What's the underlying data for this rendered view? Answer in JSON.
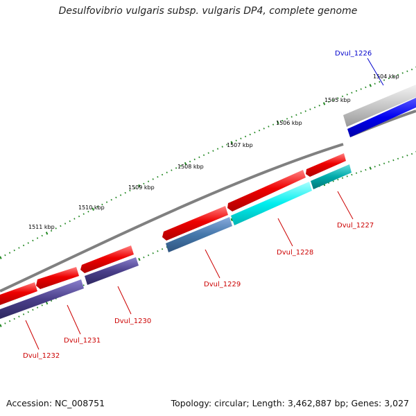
{
  "title": "Desulfovibrio vulgaris subsp. vulgaris DP4, complete genome",
  "footer": {
    "accession": "Accession: NC_008751",
    "topology": "Topology: circular; Length: 3,462,887 bp; Genes: 3,027"
  },
  "ticks": [
    "1504 kbp",
    "1505 kbp",
    "1506 kbp",
    "1507 kbp",
    "1508 kbp",
    "1509 kbp",
    "1510 kbp",
    "1511 kbp"
  ],
  "gene_labels": [
    {
      "name": "Dvul_1226",
      "color": "#0000cc"
    },
    {
      "name": "Dvul_1227",
      "color": "#cc0000"
    },
    {
      "name": "Dvul_1228",
      "color": "#cc0000"
    },
    {
      "name": "Dvul_1229",
      "color": "#cc0000"
    },
    {
      "name": "Dvul_1230",
      "color": "#cc0000"
    },
    {
      "name": "Dvul_1231",
      "color": "#cc0000"
    },
    {
      "name": "Dvul_1232",
      "color": "#cc0000"
    }
  ],
  "colors": {
    "backbone": "#808080",
    "cds_forward": "#e00000",
    "gene_blue": "#0000dd",
    "gene_cyan": "#00dddd",
    "gene_teal": "#00aaaa",
    "gene_steel": "#4477aa",
    "gene_purple": "#4a3f8a",
    "gene_gray": "#aaaaaa",
    "tick_green": "#228822"
  }
}
